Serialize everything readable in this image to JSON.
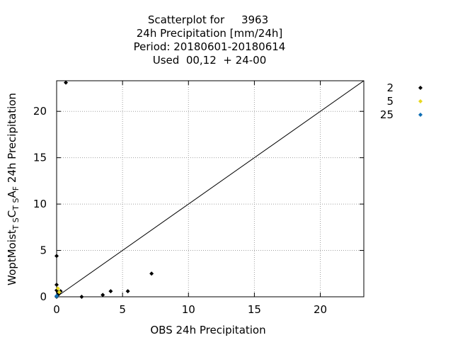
{
  "chart_data": {
    "type": "scatter",
    "title_lines": [
      "Scatterplot for     3963",
      "24h Precipitation [mm/24h]",
      "Period: 20180601-20180614",
      "Used  00,12  + 24-00"
    ],
    "xlabel": "OBS 24h Precipitation",
    "ylabel": {
      "prefix": "WoptMoist",
      "sub1": "T S",
      "mid": "C",
      "sub2": "T S",
      "mid2": "A",
      "sub3": "F",
      "suffix": " 24h Precipitation"
    },
    "xlim": [
      0,
      23.3
    ],
    "ylim": [
      0,
      23.3
    ],
    "xticks": [
      0,
      5,
      10,
      15,
      20
    ],
    "yticks": [
      0,
      5,
      10,
      15,
      20
    ],
    "grid": true,
    "diagonal_line": true,
    "legend_position": "right",
    "series": [
      {
        "name": "2",
        "color": "#000000",
        "points": [
          [
            0.7,
            23.1
          ],
          [
            0.0,
            4.4
          ],
          [
            0.0,
            1.3
          ],
          [
            0.0,
            0.7
          ],
          [
            0.1,
            0.5
          ],
          [
            0.2,
            0.4
          ],
          [
            0.1,
            0.2
          ],
          [
            0.3,
            0.6
          ],
          [
            0.0,
            0.0
          ],
          [
            1.9,
            0.0
          ],
          [
            3.5,
            0.2
          ],
          [
            4.1,
            0.6
          ],
          [
            5.4,
            0.6
          ],
          [
            7.2,
            2.5
          ]
        ]
      },
      {
        "name": "5",
        "color": "#e8d820",
        "points": [
          [
            0.1,
            0.9
          ],
          [
            0.2,
            0.5
          ]
        ]
      },
      {
        "name": "25",
        "color": "#0f6eb4",
        "points": [
          [
            0.0,
            0.1
          ],
          [
            0.0,
            0.05
          ]
        ]
      }
    ]
  }
}
